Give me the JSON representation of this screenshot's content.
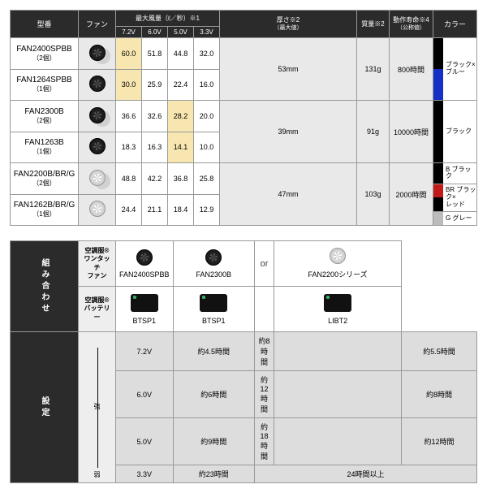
{
  "table1": {
    "headers": {
      "model": "型番",
      "fan": "ファン",
      "airflow": "最大風量（ℓ／秒）※1",
      "airflow_sub": [
        "7.2V",
        "6.0V",
        "5.0V",
        "3.3V"
      ],
      "thickness": "厚さ※2",
      "thickness_sub": "（最大値）",
      "mass": "質量※2",
      "life": "動作寿命※4",
      "life_sub": "（公称値）",
      "color": "カラー"
    },
    "groups": [
      {
        "rows": [
          {
            "model": "FAN2400SPBB",
            "qty": "（2個）",
            "fan_style": "dark-fan pair",
            "vals": [
              "60.0",
              "51.8",
              "44.8",
              "32.0"
            ],
            "hi": 0
          },
          {
            "model": "FAN1264SPBB",
            "qty": "（1個）",
            "fan_style": "dark-fan",
            "vals": [
              "30.0",
              "25.9",
              "22.4",
              "16.0"
            ],
            "hi": 0
          }
        ],
        "thickness": "53mm",
        "mass": "131g",
        "life": "800時間",
        "colors": [
          {
            "sw": "#000000",
            "label": "ブラック×\nブルー",
            "sw2": "#1530c4"
          }
        ]
      },
      {
        "rows": [
          {
            "model": "FAN2300B",
            "qty": "（2個）",
            "fan_style": "dark-fan pair",
            "vals": [
              "36.6",
              "32.6",
              "28.2",
              "20.0"
            ],
            "hi": 2
          },
          {
            "model": "FAN1263B",
            "qty": "（1個）",
            "fan_style": "dark-fan",
            "vals": [
              "18.3",
              "16.3",
              "14.1",
              "10.0"
            ],
            "hi": 2
          }
        ],
        "thickness": "39mm",
        "mass": "91g",
        "life": "10000時間",
        "colors": [
          {
            "sw": "#000000",
            "label": "ブラック"
          }
        ]
      },
      {
        "rows": [
          {
            "model": "FAN2200B/BR/G",
            "qty": "（2個）",
            "fan_style": "light-fan pair",
            "vals": [
              "48.8",
              "42.2",
              "36.8",
              "25.8"
            ],
            "hi": null
          },
          {
            "model": "FAN1262B/BR/G",
            "qty": "（1個）",
            "fan_style": "light-fan",
            "vals": [
              "24.4",
              "21.1",
              "18.4",
              "12.9"
            ],
            "hi": null
          }
        ],
        "thickness": "47mm",
        "mass": "103g",
        "life": "2000時間",
        "colors": [
          {
            "sw": "#000000",
            "label": "B ブラック"
          },
          {
            "sw": "#c21a1a",
            "label": "BR ブラック×\nレッド",
            "sw2": "#000"
          },
          {
            "sw": "#bcbcbc",
            "label": "G グレー"
          }
        ]
      }
    ]
  },
  "table2": {
    "side1": "組み合わせ",
    "side2": "設定",
    "row_fan_label": "空調服®\nワンタッチ\nファン",
    "row_bat_label": "空調服®\nバッテリー",
    "products": [
      {
        "name": "FAN2400SPBB",
        "style": "dark-fan",
        "bat": "BTSP1"
      },
      {
        "name": "FAN2300B",
        "style": "dark-fan",
        "bat": "BTSP1"
      },
      {
        "name": "FAN2200シリーズ",
        "style": "light-fan",
        "bat": "LIBT2"
      }
    ],
    "or": "or",
    "arrow_top": "強",
    "arrow_bot": "弱",
    "settings": [
      {
        "v": "7.2V",
        "t": [
          "約4.5時間",
          "約8時間",
          "約5.5時間"
        ]
      },
      {
        "v": "6.0V",
        "t": [
          "約6時間",
          "約12時間",
          "約8時間"
        ]
      },
      {
        "v": "5.0V",
        "t": [
          "約9時間",
          "約18時間",
          "約12時間"
        ]
      },
      {
        "v": "3.3V",
        "t": [
          "約23時間",
          "24時間以上",
          ""
        ],
        "merge": true
      }
    ]
  },
  "colors": {
    "header_bg": "#2b2b2b",
    "grey": "#e9e9e9",
    "hi": "#f7e6b0"
  }
}
